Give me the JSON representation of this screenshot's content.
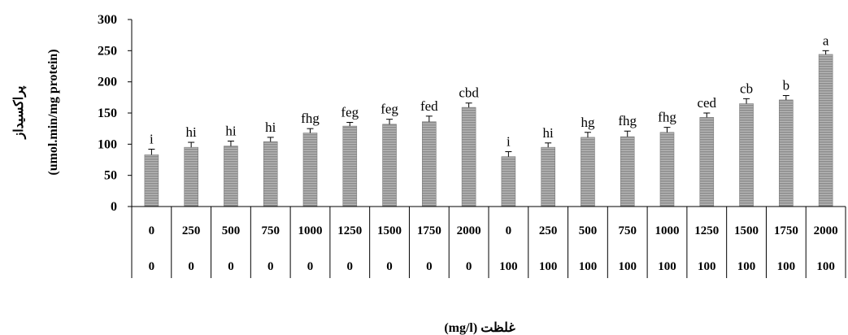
{
  "chart_data": {
    "type": "bar",
    "ylabel_line1": "پراکسیداز",
    "ylabel_line2": "(umol.min/mg protein)",
    "xlabel": "غلظت (mg/l)",
    "ylim": [
      0,
      300
    ],
    "yticks": [
      "0",
      "50",
      "100",
      "150",
      "200",
      "250",
      "300"
    ],
    "categories": [
      [
        "0",
        "0"
      ],
      [
        "250",
        "0"
      ],
      [
        "500",
        "0"
      ],
      [
        "750",
        "0"
      ],
      [
        "1000",
        "0"
      ],
      [
        "1250",
        "0"
      ],
      [
        "1500",
        "0"
      ],
      [
        "1750",
        "0"
      ],
      [
        "2000",
        "0"
      ],
      [
        "0",
        "100"
      ],
      [
        "250",
        "100"
      ],
      [
        "500",
        "100"
      ],
      [
        "750",
        "100"
      ],
      [
        "1000",
        "100"
      ],
      [
        "1250",
        "100"
      ],
      [
        "1500",
        "100"
      ],
      [
        "1750",
        "100"
      ],
      [
        "2000",
        "100"
      ]
    ],
    "values": [
      83,
      95,
      97,
      104,
      118,
      129,
      132,
      136,
      159,
      80,
      95,
      111,
      112,
      119,
      143,
      165,
      171,
      244
    ],
    "errors": [
      9,
      8,
      8,
      7,
      7,
      6,
      8,
      9,
      7,
      8,
      7,
      8,
      9,
      8,
      7,
      8,
      7,
      6
    ],
    "letters": [
      "i",
      "hi",
      "hi",
      "hi",
      "fhg",
      "feg",
      "feg",
      "fed",
      "cbd",
      "i",
      "hi",
      "hg",
      "fhg",
      "fhg",
      "ced",
      "cb",
      "b",
      "a"
    ],
    "bar_color": "#8c8c8c",
    "bar_stripe_color": "#b4b4b4",
    "grid": false
  }
}
